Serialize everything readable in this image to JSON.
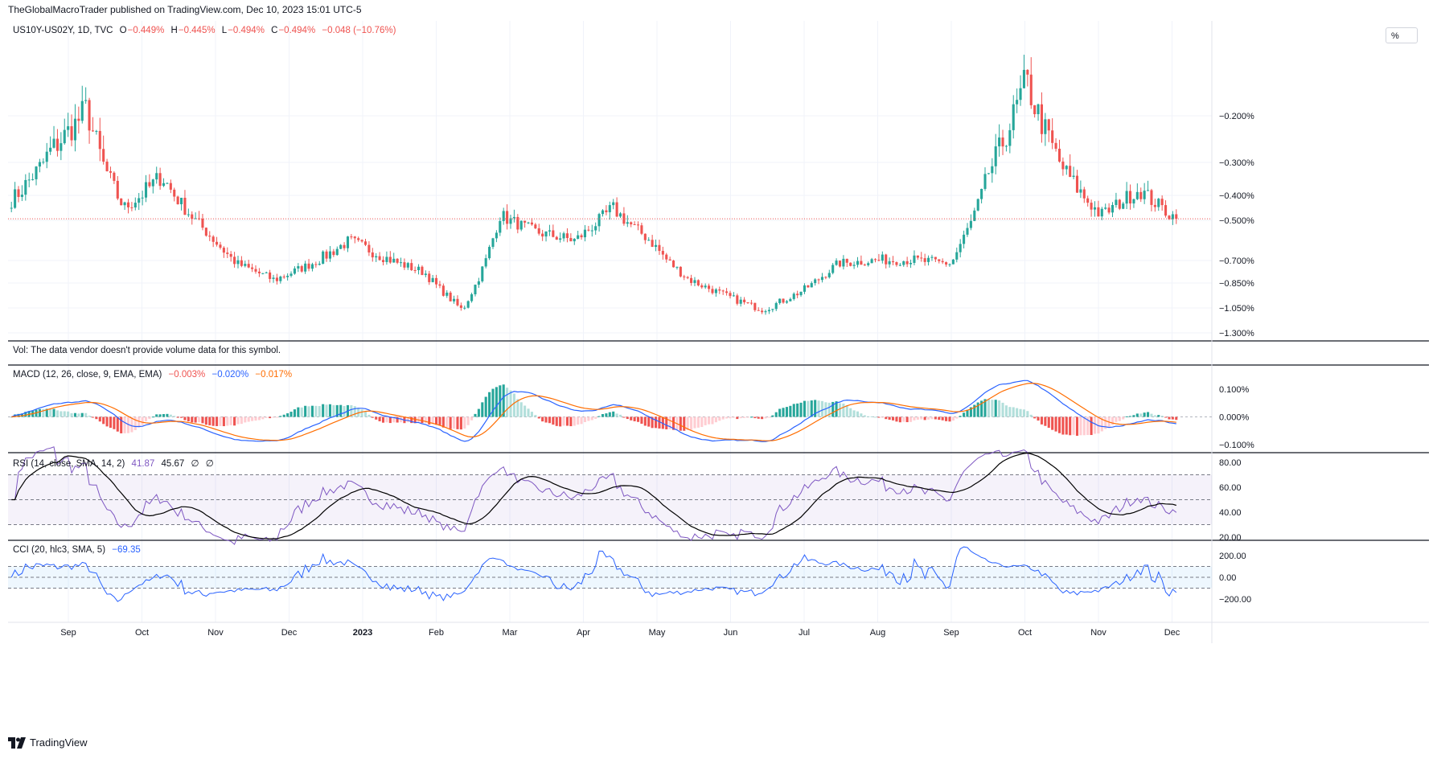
{
  "header": {
    "publisher_line": "TheGlobalMacroTrader published on TradingView.com, Dec 10, 2023 15:01 UTC-5"
  },
  "footer": {
    "brand": "TradingView"
  },
  "price_scale_mode": "%",
  "main_pane": {
    "symbol": "US10Y-US02Y, 1D, TVC",
    "ohlc": {
      "o_label": "O",
      "o_value": "−0.449%",
      "h_label": "H",
      "h_value": "−0.445%",
      "l_label": "L",
      "l_value": "−0.494%",
      "c_label": "C",
      "c_value": "−0.494%",
      "change": "−0.048 (−10.76%)"
    },
    "last_value": -0.494,
    "y_ticks": [
      "−0.200%",
      "−0.300%",
      "−0.400%",
      "−0.500%",
      "−0.700%",
      "−0.850%",
      "−1.050%",
      "−1.300%"
    ]
  },
  "volume_pane": {
    "text": "Vol: The data vendor doesn't provide volume data for this symbol."
  },
  "macd_pane": {
    "title": "MACD (12, 26, close, 9, EMA, EMA)",
    "v1": "−0.003%",
    "v2": "−0.020%",
    "v3": "−0.017%",
    "y_ticks": [
      "0.100%",
      "0.000%",
      "−0.100%"
    ]
  },
  "rsi_pane": {
    "title": "RSI (14, close, SMA, 14, 2)",
    "v1": "41.87",
    "v2": "45.67",
    "v3": "∅",
    "v4": "∅",
    "y_ticks": [
      "80.00",
      "60.00",
      "40.00",
      "20.00"
    ]
  },
  "cci_pane": {
    "title": "CCI (20, hlc3, SMA, 5)",
    "value": "−69.35",
    "y_ticks": [
      "200.00",
      "0.00",
      "−200.00"
    ]
  },
  "time_axis": [
    "Sep",
    "Oct",
    "Nov",
    "Dec",
    "2023",
    "Feb",
    "Mar",
    "Apr",
    "May",
    "Jun",
    "Jul",
    "Aug",
    "Sep",
    "Oct",
    "Nov",
    "Dec"
  ],
  "colors": {
    "up": "#26a69a",
    "down": "#ef5350",
    "macd_line": "#2962ff",
    "signal_line": "#ff6d00",
    "rsi_line": "#7e57c2",
    "rsi_ma": "#000000",
    "cci_line": "#2962ff",
    "grid": "#f0f3fa"
  },
  "chart_data": {
    "type": "candlestick",
    "period": "1D",
    "x_range": [
      "2022-08-15",
      "2023-12-08"
    ],
    "close_path": [
      {
        "month": "2022-08",
        "close": -0.42
      },
      {
        "month": "2022-09",
        "close": -0.28
      },
      {
        "month": "2022-09",
        "close": -0.19
      },
      {
        "month": "2022-10",
        "close": -0.45
      },
      {
        "month": "2022-10",
        "close": -0.34
      },
      {
        "month": "2022-11",
        "close": -0.52
      },
      {
        "month": "2022-11",
        "close": -0.72
      },
      {
        "month": "2022-12",
        "close": -0.83
      },
      {
        "month": "2022-12",
        "close": -0.72
      },
      {
        "month": "2023-01",
        "close": -0.6
      },
      {
        "month": "2023-01",
        "close": -0.69
      },
      {
        "month": "2023-02",
        "close": -0.78
      },
      {
        "month": "2023-03",
        "close": -1.07
      },
      {
        "month": "2023-03",
        "close": -0.48
      },
      {
        "month": "2023-04",
        "close": -0.56
      },
      {
        "month": "2023-04",
        "close": -0.6
      },
      {
        "month": "2023-05",
        "close": -0.45
      },
      {
        "month": "2023-05",
        "close": -0.6
      },
      {
        "month": "2023-06",
        "close": -0.82
      },
      {
        "month": "2023-06",
        "close": -0.95
      },
      {
        "month": "2023-07",
        "close": -1.07
      },
      {
        "month": "2023-07",
        "close": -0.92
      },
      {
        "month": "2023-08",
        "close": -0.72
      },
      {
        "month": "2023-08",
        "close": -0.7
      },
      {
        "month": "2023-09",
        "close": -0.7
      },
      {
        "month": "2023-09",
        "close": -0.72
      },
      {
        "month": "2023-10",
        "close": -0.33
      },
      {
        "month": "2023-10",
        "close": -0.14
      },
      {
        "month": "2023-11",
        "close": -0.32
      },
      {
        "month": "2023-11",
        "close": -0.48
      },
      {
        "month": "2023-12",
        "close": -0.38
      },
      {
        "month": "2023-12",
        "close": -0.494
      }
    ]
  }
}
